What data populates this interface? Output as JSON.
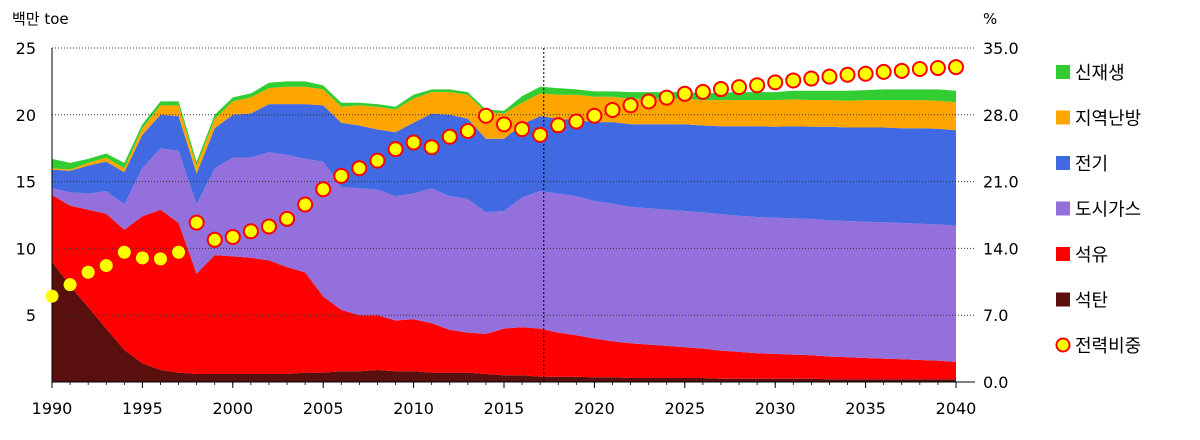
{
  "chart_data": {
    "type": "area",
    "left_axis_unit": "백만 toe",
    "right_axis_unit": "%",
    "x": [
      1990,
      1991,
      1992,
      1993,
      1994,
      1995,
      1996,
      1997,
      1998,
      1999,
      2000,
      2001,
      2002,
      2003,
      2004,
      2005,
      2006,
      2007,
      2008,
      2009,
      2010,
      2011,
      2012,
      2013,
      2014,
      2015,
      2016,
      2017,
      2018,
      2019,
      2020,
      2021,
      2022,
      2023,
      2024,
      2025,
      2026,
      2027,
      2028,
      2029,
      2030,
      2031,
      2032,
      2033,
      2034,
      2035,
      2036,
      2037,
      2038,
      2039,
      2040
    ],
    "x_ticks": [
      "1990",
      "1995",
      "2000",
      "2005",
      "2010",
      "2015",
      "2020",
      "2025",
      "2030",
      "2035",
      "2040"
    ],
    "y_left_ticks": [
      "5",
      "10",
      "15",
      "20",
      "25"
    ],
    "y_left_range": [
      0,
      25
    ],
    "y_right_ticks": [
      "0.0",
      "7.0",
      "14.0",
      "21.0",
      "28.0",
      "35.0"
    ],
    "y_right_range": [
      0,
      35
    ],
    "forecast_start_x": 2017.2,
    "series": [
      {
        "name": "석탄",
        "color": "#5a0f0f",
        "values": [
          9.0,
          7.2,
          5.6,
          4.0,
          2.4,
          1.4,
          0.9,
          0.7,
          0.6,
          0.6,
          0.6,
          0.6,
          0.6,
          0.6,
          0.7,
          0.7,
          0.8,
          0.8,
          0.9,
          0.8,
          0.8,
          0.7,
          0.7,
          0.7,
          0.6,
          0.5,
          0.5,
          0.4,
          0.4,
          0.4,
          0.35,
          0.35,
          0.3,
          0.3,
          0.3,
          0.3,
          0.3,
          0.25,
          0.25,
          0.25,
          0.25,
          0.25,
          0.25,
          0.2,
          0.2,
          0.2,
          0.2,
          0.2,
          0.2,
          0.2,
          0.2
        ]
      },
      {
        "name": "석유",
        "color": "#ff0000",
        "values": [
          5.0,
          6.0,
          7.3,
          8.6,
          9.0,
          11.0,
          12.0,
          11.2,
          7.5,
          8.9,
          8.8,
          8.7,
          8.5,
          8.0,
          7.5,
          5.7,
          4.6,
          4.2,
          4.1,
          3.8,
          3.9,
          3.7,
          3.2,
          3.0,
          3.0,
          3.5,
          3.6,
          3.6,
          3.3,
          3.1,
          2.9,
          2.7,
          2.6,
          2.5,
          2.4,
          2.3,
          2.2,
          2.1,
          2.0,
          1.9,
          1.85,
          1.8,
          1.75,
          1.7,
          1.65,
          1.6,
          1.55,
          1.5,
          1.45,
          1.4,
          1.3
        ]
      },
      {
        "name": "도시가스",
        "color": "#9370db",
        "values": [
          0.5,
          1.0,
          1.2,
          1.7,
          1.9,
          3.6,
          4.6,
          5.4,
          5.2,
          6.5,
          7.4,
          7.5,
          8.1,
          8.4,
          8.5,
          10.1,
          9.2,
          9.5,
          9.4,
          9.3,
          9.4,
          10.1,
          10.0,
          10.0,
          9.1,
          8.8,
          9.7,
          10.3,
          10.4,
          10.4,
          10.3,
          10.3,
          10.2,
          10.2,
          10.2,
          10.2,
          10.2,
          10.2,
          10.2,
          10.2,
          10.2,
          10.2,
          10.2,
          10.2,
          10.2,
          10.2,
          10.2,
          10.2,
          10.2,
          10.2,
          10.2
        ]
      },
      {
        "name": "전기",
        "color": "#4169e1",
        "values": [
          1.4,
          1.6,
          2.1,
          2.2,
          2.4,
          2.5,
          2.5,
          2.6,
          2.3,
          3.0,
          3.2,
          3.3,
          3.6,
          3.8,
          4.1,
          4.2,
          4.8,
          4.7,
          4.5,
          4.8,
          5.3,
          5.6,
          6.1,
          6.0,
          5.5,
          5.4,
          5.5,
          5.6,
          5.6,
          5.7,
          5.9,
          6.1,
          6.2,
          6.3,
          6.4,
          6.5,
          6.5,
          6.6,
          6.7,
          6.8,
          6.8,
          6.9,
          6.9,
          7.0,
          7.0,
          7.05,
          7.1,
          7.1,
          7.15,
          7.15,
          7.15
        ]
      },
      {
        "name": "지역난방",
        "color": "#ffa500",
        "values": [
          0.1,
          0.1,
          0.2,
          0.3,
          0.3,
          0.5,
          0.7,
          0.8,
          0.6,
          0.7,
          1.0,
          1.2,
          1.2,
          1.3,
          1.3,
          1.2,
          1.2,
          1.5,
          1.7,
          1.7,
          1.8,
          1.6,
          1.7,
          1.8,
          2.0,
          1.9,
          1.6,
          1.7,
          1.8,
          1.9,
          1.9,
          1.9,
          1.9,
          1.9,
          1.9,
          1.9,
          1.9,
          1.95,
          1.95,
          1.95,
          2.0,
          2.0,
          2.0,
          2.0,
          2.0,
          2.05,
          2.05,
          2.1,
          2.1,
          2.1,
          2.1
        ]
      },
      {
        "name": "신재생",
        "color": "#32cd32",
        "values": [
          0.7,
          0.5,
          0.3,
          0.3,
          0.4,
          0.3,
          0.3,
          0.3,
          0.3,
          0.3,
          0.3,
          0.3,
          0.4,
          0.4,
          0.4,
          0.3,
          0.3,
          0.2,
          0.2,
          0.2,
          0.3,
          0.2,
          0.2,
          0.2,
          0.2,
          0.2,
          0.5,
          0.5,
          0.5,
          0.4,
          0.4,
          0.4,
          0.5,
          0.5,
          0.5,
          0.5,
          0.5,
          0.55,
          0.6,
          0.6,
          0.6,
          0.65,
          0.7,
          0.7,
          0.75,
          0.75,
          0.8,
          0.8,
          0.8,
          0.85,
          0.85
        ]
      }
    ],
    "ratio_series": {
      "name": "전력비중",
      "color": "#ffff00",
      "border": "#ff0000",
      "axis": "right",
      "values": [
        9.0,
        10.2,
        11.5,
        12.2,
        13.6,
        13.0,
        12.9,
        13.6,
        16.7,
        14.9,
        15.2,
        15.8,
        16.3,
        17.1,
        18.6,
        20.2,
        21.6,
        22.4,
        23.2,
        24.4,
        25.1,
        24.6,
        25.7,
        26.3,
        27.9,
        27.0,
        26.5,
        25.9,
        26.9,
        27.3,
        27.9,
        28.5,
        29.0,
        29.4,
        29.8,
        30.2,
        30.4,
        30.7,
        30.9,
        31.1,
        31.4,
        31.6,
        31.8,
        32.0,
        32.2,
        32.3,
        32.5,
        32.6,
        32.8,
        32.9,
        33.0
      ]
    },
    "legend": [
      "신재생",
      "지역난방",
      "전기",
      "도시가스",
      "석유",
      "석탄",
      "전력비중"
    ]
  }
}
